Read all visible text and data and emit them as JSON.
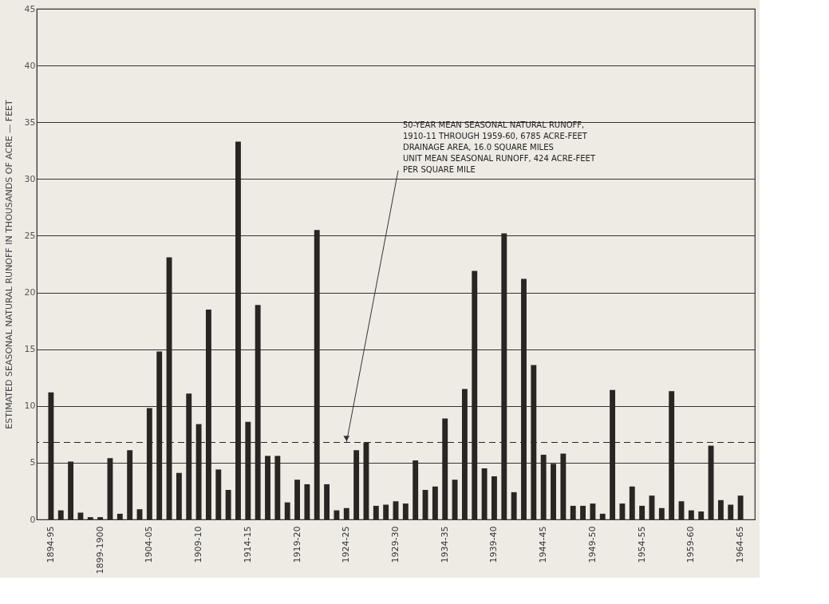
{
  "chart_data": {
    "type": "bar",
    "ylabel": "ESTIMATED SEASONAL NATURAL RUNOFF IN THOUSANDS OF ACRE — FEET",
    "categories": [
      "1894-95",
      null,
      null,
      null,
      null,
      "1899-1900",
      null,
      null,
      null,
      null,
      "1904-05",
      null,
      null,
      null,
      null,
      "1909-10",
      null,
      null,
      null,
      null,
      "1914-15",
      null,
      null,
      null,
      null,
      "1919-20",
      null,
      null,
      null,
      null,
      "1924-25",
      null,
      null,
      null,
      null,
      "1929-30",
      null,
      null,
      null,
      null,
      "1934-35",
      null,
      null,
      null,
      null,
      "1939-40",
      null,
      null,
      null,
      null,
      "1944-45",
      null,
      null,
      null,
      null,
      "1949-50",
      null,
      null,
      null,
      null,
      "1954-55",
      null,
      null,
      null,
      null,
      "1959-60",
      null,
      null,
      null,
      null,
      "1964-65"
    ],
    "values": [
      11.2,
      0.8,
      5.1,
      0.6,
      0.2,
      0.2,
      5.4,
      0.5,
      6.1,
      0.9,
      9.8,
      14.8,
      23.1,
      4.1,
      11.1,
      8.4,
      18.5,
      4.4,
      2.6,
      33.3,
      8.6,
      18.9,
      5.6,
      5.6,
      1.5,
      3.5,
      3.1,
      25.5,
      3.1,
      0.8,
      1.0,
      6.1,
      6.8,
      1.2,
      1.3,
      1.6,
      1.4,
      5.2,
      2.6,
      2.9,
      8.9,
      3.5,
      11.5,
      21.9,
      4.5,
      3.8,
      25.2,
      2.4,
      21.2,
      13.6,
      5.7,
      4.9,
      5.8,
      1.2,
      1.2,
      1.4,
      0.5,
      11.4,
      1.4,
      2.9,
      1.2,
      2.1,
      1.0,
      11.3,
      1.6,
      0.8,
      0.7,
      6.5,
      1.7,
      1.3,
      2.1
    ],
    "color": "#2a2422",
    "ylim": [
      0,
      45
    ],
    "yticks": [
      0,
      5,
      10,
      15,
      20,
      25,
      30,
      35,
      40,
      45
    ],
    "grid": "y",
    "ref_lines": [
      {
        "axis": "y",
        "value": 6.785,
        "label": null,
        "color": "#2a2422",
        "line_style": "dashed"
      }
    ],
    "annotations": [
      {
        "text": "50-YEAR MEAN SEASONAL NATURAL RUNOFF,\n1910-11 THROUGH 1959-60, 6785 ACRE-FEET\nDRAINAGE AREA, 16.0 SQUARE MILES\nUNIT MEAN SEASONAL RUNOFF, 424 ACRE-FEET\nPER SQUARE MILE",
        "x": "1924-25",
        "y": 6.785
      }
    ]
  }
}
